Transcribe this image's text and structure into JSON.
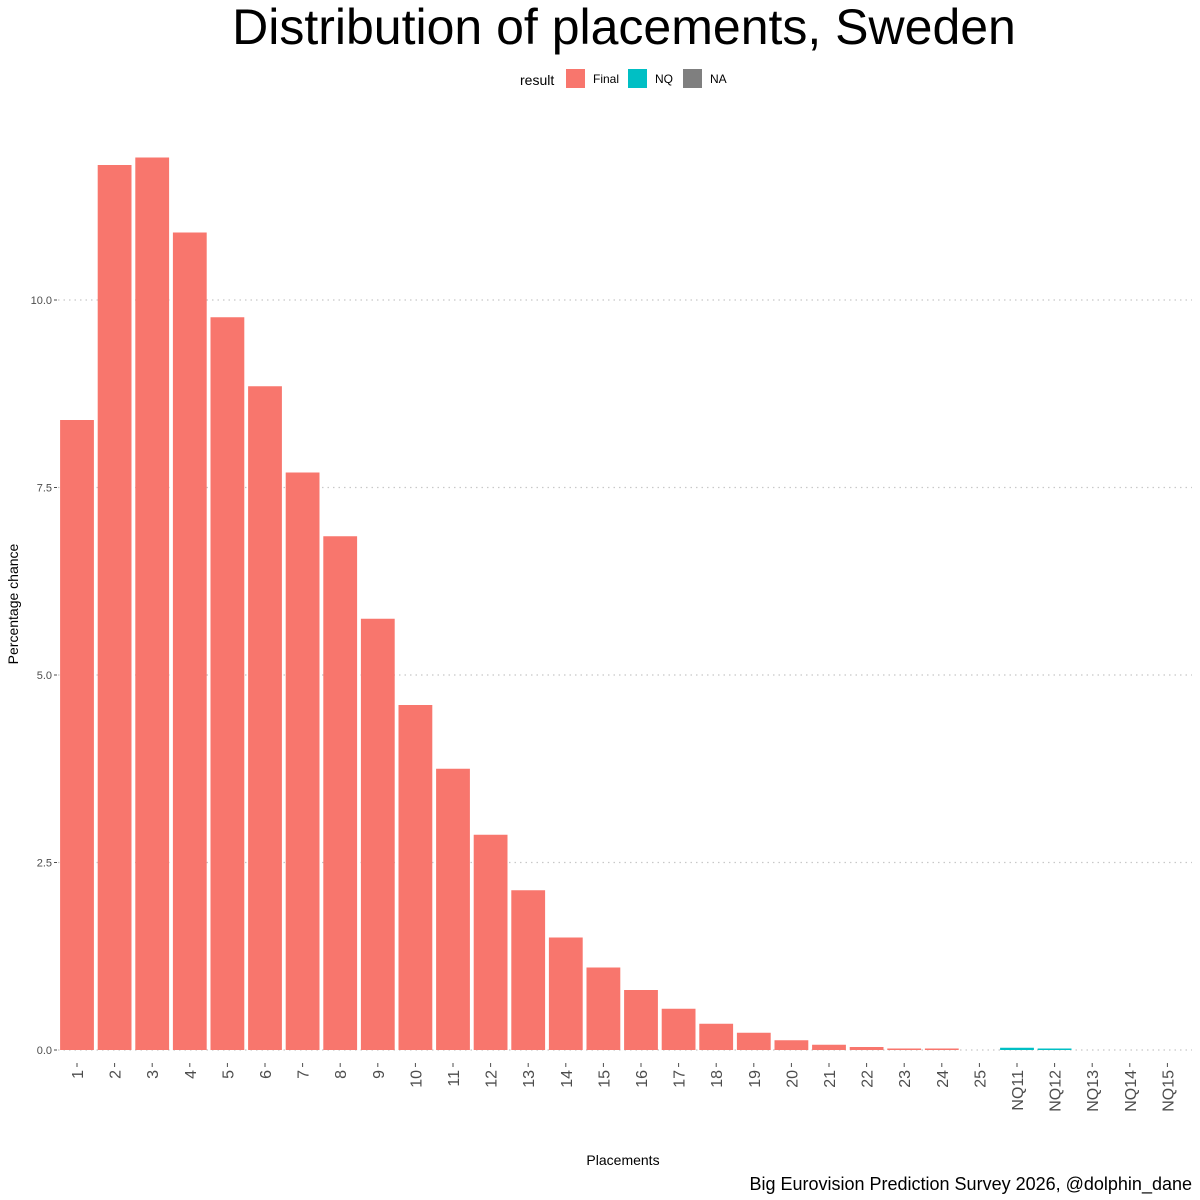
{
  "chart_data": {
    "type": "bar",
    "title": "Distribution of placements, Sweden",
    "xlabel": "Placements",
    "ylabel": "Percentage chance",
    "caption": "Big Eurovision Prediction Survey 2026, @dolphin_dane",
    "legend": {
      "title": "result",
      "position": "top",
      "entries": [
        {
          "label": "Final",
          "color": "#F8766D"
        },
        {
          "label": "NQ",
          "color": "#00BFC4"
        },
        {
          "label": "NA",
          "color": "#7F7F7F"
        }
      ]
    },
    "ylim": [
      0,
      12.3
    ],
    "yticks": [
      0,
      2.5,
      5,
      7.5,
      10
    ],
    "ytick_labels": [
      "0.0",
      "2.5",
      "5.0",
      "7.5",
      "10.0"
    ],
    "grid": true,
    "categories": [
      "1",
      "2",
      "3",
      "4",
      "5",
      "6",
      "7",
      "8",
      "9",
      "10",
      "11",
      "12",
      "13",
      "14",
      "15",
      "16",
      "17",
      "18",
      "19",
      "20",
      "21",
      "22",
      "23",
      "24",
      "25",
      "NQ11",
      "NQ12",
      "NQ13",
      "NQ14",
      "NQ15"
    ],
    "series": [
      {
        "name": "Final",
        "color": "#F8766D",
        "values": [
          8.4,
          11.8,
          11.9,
          10.9,
          9.77,
          8.85,
          7.7,
          6.85,
          5.75,
          4.6,
          3.75,
          2.87,
          2.13,
          1.5,
          1.1,
          0.8,
          0.55,
          0.35,
          0.23,
          0.13,
          0.07,
          0.04,
          0.015,
          0.01,
          0,
          0,
          0,
          0,
          0,
          0
        ]
      },
      {
        "name": "NQ",
        "color": "#00BFC4",
        "values": [
          0,
          0,
          0,
          0,
          0,
          0,
          0,
          0,
          0,
          0,
          0,
          0,
          0,
          0,
          0,
          0,
          0,
          0,
          0,
          0,
          0,
          0,
          0,
          0,
          0,
          0.03,
          0.01,
          0,
          0,
          0
        ]
      }
    ]
  }
}
